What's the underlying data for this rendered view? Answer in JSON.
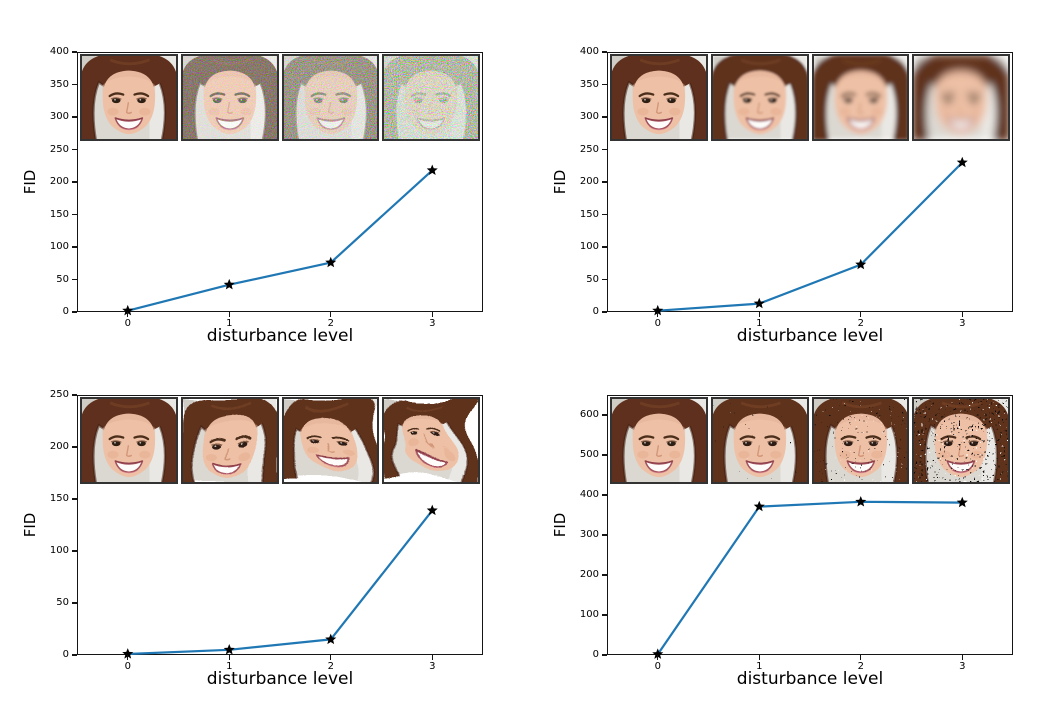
{
  "figure": {
    "background": "#ffffff",
    "line_color": "#1f77b4",
    "marker": "black-star",
    "marker_color": "#000000",
    "axes_color": "#151515"
  },
  "chart_data": [
    {
      "type": "line",
      "panel": "top-left",
      "effect": "color-noise",
      "xlabel": "disturbance level",
      "ylabel": "FID",
      "x": [
        0,
        1,
        2,
        3
      ],
      "values": [
        2,
        42,
        76,
        218
      ],
      "xlim": [
        -0.5,
        3.5
      ],
      "ylim": [
        0,
        400
      ],
      "xticks": [
        0,
        1,
        2,
        3
      ],
      "yticks": [
        0,
        50,
        100,
        150,
        200,
        250,
        300,
        350,
        400
      ],
      "insets": [
        "clean face",
        "face with light color noise",
        "face with medium color noise",
        "face with heavy color noise"
      ]
    },
    {
      "type": "line",
      "panel": "top-right",
      "effect": "blur",
      "xlabel": "disturbance level",
      "ylabel": "FID",
      "x": [
        0,
        1,
        2,
        3
      ],
      "values": [
        2,
        13,
        73,
        230
      ],
      "xlim": [
        -0.5,
        3.5
      ],
      "ylim": [
        0,
        400
      ],
      "xticks": [
        0,
        1,
        2,
        3
      ],
      "yticks": [
        0,
        50,
        100,
        150,
        200,
        250,
        300,
        350,
        400
      ],
      "insets": [
        "clean face",
        "face with light blur",
        "face with medium blur",
        "face with heavy blur"
      ]
    },
    {
      "type": "line",
      "panel": "bottom-left",
      "effect": "swirl",
      "xlabel": "disturbance level",
      "ylabel": "FID",
      "x": [
        0,
        1,
        2,
        3
      ],
      "values": [
        1,
        5,
        15,
        139
      ],
      "xlim": [
        -0.5,
        3.5
      ],
      "ylim": [
        0,
        250
      ],
      "xticks": [
        0,
        1,
        2,
        3
      ],
      "yticks": [
        0,
        50,
        100,
        150,
        200,
        250
      ],
      "insets": [
        "clean face",
        "face with light swirl distortion",
        "face with medium swirl distortion",
        "face with heavy swirl distortion"
      ]
    },
    {
      "type": "line",
      "panel": "bottom-right",
      "effect": "salt-pepper",
      "xlabel": "disturbance level",
      "ylabel": "FID",
      "x": [
        0,
        1,
        2,
        3
      ],
      "values": [
        2,
        371,
        383,
        381
      ],
      "xlim": [
        -0.5,
        3.5
      ],
      "ylim": [
        0,
        650
      ],
      "xticks": [
        0,
        1,
        2,
        3
      ],
      "yticks": [
        0,
        100,
        200,
        300,
        400,
        500,
        600
      ],
      "insets": [
        "clean face",
        "face with light salt-and-pepper dropout",
        "face with medium salt-and-pepper dropout",
        "face with heavy salt-and-pepper dropout"
      ]
    }
  ]
}
